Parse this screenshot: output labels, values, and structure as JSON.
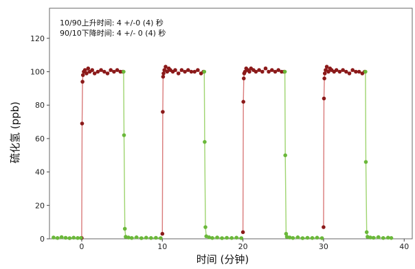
{
  "chart_data": {
    "type": "scatter",
    "xlabel": "时间 (分钟)",
    "ylabel": "硫化氢 (ppb)",
    "xlim": [
      -4,
      41
    ],
    "ylim": [
      0,
      138
    ],
    "xticks": [
      0,
      10,
      20,
      30,
      40
    ],
    "yticks": [
      0,
      20,
      40,
      60,
      80,
      100,
      120
    ],
    "grid": false,
    "annotations": [
      "10/90上升时间: 4 +/-0 (4) 秒",
      "90/10下降时间: 4 +/- 0 (4) 秒"
    ],
    "colors": {
      "rise": "#8b1a1a",
      "rise_line": "#d97a7a",
      "fall": "#6ab83a",
      "fall_line": "#9ed46f"
    },
    "series": [
      {
        "role": "rise",
        "cycles": [
          {
            "x": [
              0.0,
              0.05,
              0.1,
              0.15,
              0.25,
              0.4,
              0.6,
              0.8,
              1.0,
              1.3,
              1.6,
              2.0,
              2.4,
              2.8,
              3.2,
              3.6,
              4.0,
              4.4,
              4.8,
              5.1
            ],
            "y": [
              0.5,
              69,
              94,
              98,
              100,
              101,
              99,
              102,
              100,
              101,
              99,
              100,
              101,
              100,
              99,
              101,
              100,
              101,
              100,
              100
            ]
          },
          {
            "x": [
              10.0,
              10.05,
              10.1,
              10.15,
              10.25,
              10.4,
              10.6,
              10.8,
              11.0,
              11.3,
              11.6,
              12.0,
              12.4,
              12.8,
              13.2,
              13.6,
              14.0,
              14.4,
              14.8,
              15.1
            ],
            "y": [
              3,
              76,
              97,
              99,
              101,
              103,
              100,
              102,
              101,
              100,
              101,
              99,
              101,
              100,
              101,
              100,
              100,
              101,
              99,
              100
            ]
          },
          {
            "x": [
              20.0,
              20.05,
              20.1,
              20.15,
              20.25,
              20.4,
              20.6,
              20.8,
              21.0,
              21.3,
              21.6,
              22.0,
              22.4,
              22.8,
              23.2,
              23.6,
              24.0,
              24.4,
              24.8,
              25.1
            ],
            "y": [
              4,
              82,
              96,
              99,
              100,
              102,
              101,
              100,
              102,
              101,
              100,
              101,
              100,
              102,
              100,
              101,
              100,
              101,
              100,
              100
            ]
          },
          {
            "x": [
              30.0,
              30.05,
              30.1,
              30.15,
              30.25,
              30.4,
              30.6,
              30.8,
              31.0,
              31.3,
              31.6,
              32.0,
              32.4,
              32.8,
              33.2,
              33.6,
              34.0,
              34.4,
              34.8,
              35.1
            ],
            "y": [
              7,
              84,
              96,
              99,
              101,
              103,
              100,
              102,
              101,
              100,
              101,
              100,
              101,
              100,
              99,
              101,
              100,
              100,
              99,
              100
            ]
          }
        ]
      },
      {
        "role": "fall",
        "cycles": [
          {
            "x": [
              -3.5,
              -3.0,
              -2.5,
              -2.0,
              -1.5,
              -1.0,
              -0.5,
              -0.1
            ],
            "y": [
              0.8,
              0.5,
              1.0,
              0.6,
              0.4,
              0.7,
              0.5,
              0.5
            ]
          },
          {
            "x": [
              5.2,
              5.25,
              5.35,
              5.45,
              5.8,
              6.2,
              6.8,
              7.4,
              8.0,
              8.6,
              9.2,
              9.8
            ],
            "y": [
              100,
              62,
              6,
              1.2,
              0.8,
              0.5,
              0.9,
              0.4,
              0.7,
              0.5,
              0.6,
              0.4
            ]
          },
          {
            "x": [
              15.2,
              15.25,
              15.35,
              15.45,
              15.8,
              16.2,
              16.8,
              17.4,
              18.0,
              18.6,
              19.2,
              19.8
            ],
            "y": [
              100,
              58,
              7,
              1.5,
              0.9,
              0.5,
              0.8,
              0.4,
              0.6,
              0.5,
              0.7,
              0.4
            ]
          },
          {
            "x": [
              25.2,
              25.25,
              25.35,
              25.45,
              25.8,
              26.2,
              26.8,
              27.4,
              28.0,
              28.6,
              29.2,
              29.8
            ],
            "y": [
              100,
              50,
              3,
              1.2,
              0.8,
              0.5,
              0.9,
              0.4,
              0.6,
              0.5,
              0.7,
              0.4
            ]
          },
          {
            "x": [
              35.2,
              35.25,
              35.35,
              35.45,
              35.8,
              36.2,
              36.8,
              37.4,
              38.0,
              38.4
            ],
            "y": [
              100,
              46,
              4,
              1.2,
              0.8,
              0.6,
              1.0,
              0.5,
              0.7,
              0.5
            ]
          }
        ]
      }
    ]
  }
}
